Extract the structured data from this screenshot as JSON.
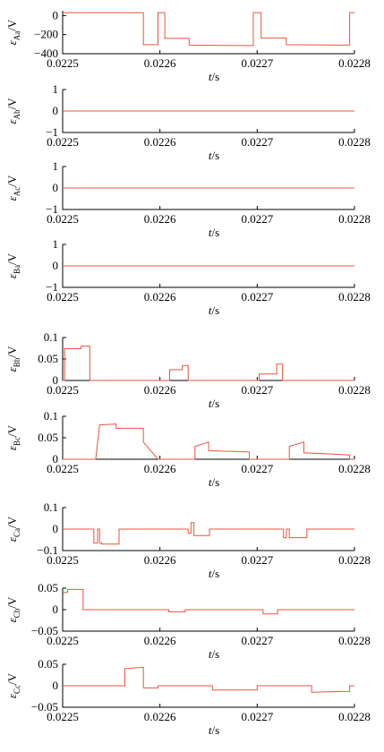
{
  "colors": {
    "series": "#e8543c",
    "axis": "#000000"
  },
  "chart_data": [
    {
      "type": "line",
      "ylabel_symbol": "ε",
      "ylabel_sub": "Aa",
      "ylabel_unit": "/V",
      "xlabel_symbol": "t",
      "xlabel_unit": "/s",
      "xlim": [
        0.0225,
        0.0228
      ],
      "ylim": [
        -400,
        50
      ],
      "xticks": [
        "0.0225",
        "0.0226",
        "0.0227",
        "0.0228"
      ],
      "yticks": [
        {
          "v": 0,
          "t": "0"
        },
        {
          "v": -200,
          "t": "−200"
        },
        {
          "v": -400,
          "t": "−400"
        }
      ],
      "x": [
        0.0225,
        0.022583,
        0.022583,
        0.022598,
        0.022598,
        0.022605,
        0.022605,
        0.02263,
        0.02263,
        0.022696,
        0.022696,
        0.022704,
        0.022704,
        0.02273,
        0.02273,
        0.022795,
        0.022795,
        0.0228
      ],
      "y": [
        30,
        30,
        -305,
        -305,
        30,
        30,
        -240,
        -240,
        -310,
        -315,
        30,
        30,
        -235,
        -235,
        -305,
        -310,
        30,
        30
      ]
    },
    {
      "type": "line",
      "ylabel_symbol": "ε",
      "ylabel_sub": "Ab",
      "ylabel_unit": "/V",
      "xlabel_symbol": "t",
      "xlabel_unit": "/s",
      "xlim": [
        0.0225,
        0.0228
      ],
      "ylim": [
        -1,
        1
      ],
      "xticks": [
        "0.0225",
        "0.0226",
        "0.0227",
        "0.0228"
      ],
      "yticks": [
        {
          "v": 1,
          "t": "1"
        },
        {
          "v": 0,
          "t": "0"
        },
        {
          "v": -1,
          "t": "−1"
        }
      ],
      "x": [
        0.0225,
        0.0228
      ],
      "y": [
        0,
        0
      ]
    },
    {
      "type": "line",
      "ylabel_symbol": "ε",
      "ylabel_sub": "Ac",
      "ylabel_unit": "/V",
      "xlabel_symbol": "t",
      "xlabel_unit": "/s",
      "xlim": [
        0.0225,
        0.0228
      ],
      "ylim": [
        -1,
        1
      ],
      "xticks": [
        "0.0225",
        "0.0226",
        "0.0227",
        "0.0228"
      ],
      "yticks": [
        {
          "v": 1,
          "t": "1"
        },
        {
          "v": 0,
          "t": "0"
        },
        {
          "v": -1,
          "t": "−1"
        }
      ],
      "x": [
        0.0225,
        0.0228
      ],
      "y": [
        0,
        0
      ]
    },
    {
      "type": "line",
      "ylabel_symbol": "ε",
      "ylabel_sub": "Ba",
      "ylabel_unit": "/V",
      "xlabel_symbol": "t",
      "xlabel_unit": "/s",
      "xlim": [
        0.0225,
        0.0228
      ],
      "ylim": [
        -1,
        1
      ],
      "xticks": [
        "0.0225",
        "0.0226",
        "0.0227",
        "0.0228"
      ],
      "yticks": [
        {
          "v": 1,
          "t": "1"
        },
        {
          "v": 0,
          "t": "0"
        },
        {
          "v": -1,
          "t": "−1"
        }
      ],
      "x": [
        0.0225,
        0.0228
      ],
      "y": [
        0,
        0
      ]
    },
    {
      "type": "line",
      "ylabel_symbol": "ε",
      "ylabel_sub": "Bb",
      "ylabel_unit": "/V",
      "xlabel_symbol": "t",
      "xlabel_unit": "/s",
      "xlim": [
        0.0225,
        0.0228
      ],
      "ylim": [
        0,
        0.1
      ],
      "xticks": [
        "0.0225",
        "0.0226",
        "0.0227",
        "0.0228"
      ],
      "yticks": [
        {
          "v": 0.1,
          "t": "0.1"
        },
        {
          "v": 0.05,
          "t": "0.05"
        },
        {
          "v": 0,
          "t": "0"
        }
      ],
      "x": [
        0.0225,
        0.022502,
        0.022502,
        0.022519,
        0.022519,
        0.022528,
        0.022528,
        0.02261,
        0.02261,
        0.022623,
        0.022623,
        0.022629,
        0.022629,
        0.022702,
        0.022702,
        0.02272,
        0.02272,
        0.022726,
        0.022726,
        0.0228
      ],
      "y": [
        0,
        0,
        0.074,
        0.074,
        0.08,
        0.08,
        0,
        0,
        0.025,
        0.025,
        0.035,
        0.035,
        0,
        0,
        0.015,
        0.015,
        0.038,
        0.038,
        0,
        0
      ]
    },
    {
      "type": "line",
      "ylabel_symbol": "ε",
      "ylabel_sub": "Bc",
      "ylabel_unit": "/V",
      "xlabel_symbol": "t",
      "xlabel_unit": "/s",
      "xlim": [
        0.0225,
        0.0228
      ],
      "ylim": [
        0,
        0.1
      ],
      "xticks": [
        "0.0225",
        "0.0226",
        "0.0227",
        "0.0228"
      ],
      "yticks": [
        {
          "v": 0.1,
          "t": "0.1"
        },
        {
          "v": 0.05,
          "t": "0.05"
        },
        {
          "v": 0,
          "t": "0"
        }
      ],
      "x": [
        0.0225,
        0.022534,
        0.022538,
        0.022555,
        0.022555,
        0.022583,
        0.022583,
        0.022598,
        0.022636,
        0.022636,
        0.02265,
        0.02265,
        0.022692,
        0.022692,
        0.022733,
        0.022733,
        0.022748,
        0.022748,
        0.022795,
        0.022795,
        0.0228
      ],
      "y": [
        0,
        0,
        0.08,
        0.082,
        0.072,
        0.072,
        0.04,
        0,
        0,
        0.03,
        0.04,
        0.02,
        0.017,
        0,
        0,
        0.03,
        0.04,
        0.015,
        0.01,
        0,
        0
      ]
    },
    {
      "type": "line",
      "ylabel_symbol": "ε",
      "ylabel_sub": "Ca",
      "ylabel_unit": "/V",
      "xlabel_symbol": "t",
      "xlabel_unit": "/s",
      "xlim": [
        0.0225,
        0.0228
      ],
      "ylim": [
        -0.1,
        0.1
      ],
      "xticks": [
        "0.0225",
        "0.0226",
        "0.0227",
        "0.0228"
      ],
      "yticks": [
        {
          "v": 0.1,
          "t": "0.1"
        },
        {
          "v": 0,
          "t": "0"
        },
        {
          "v": -0.1,
          "t": "−0.1"
        }
      ],
      "x": [
        0.0225,
        0.022532,
        0.022532,
        0.022536,
        0.022536,
        0.022538,
        0.022538,
        0.02254,
        0.02254,
        0.022558,
        0.022558,
        0.022629,
        0.022629,
        0.022632,
        0.022632,
        0.022635,
        0.022635,
        0.022651,
        0.022651,
        0.022727,
        0.022727,
        0.02273,
        0.02273,
        0.022733,
        0.022733,
        0.022751,
        0.022751,
        0.0228
      ],
      "y": [
        0,
        0,
        -0.065,
        -0.065,
        0,
        0,
        -0.065,
        -0.065,
        -0.07,
        -0.07,
        0,
        0,
        -0.02,
        -0.02,
        0.03,
        0.03,
        -0.03,
        -0.03,
        0,
        0,
        -0.04,
        -0.04,
        0,
        0,
        -0.04,
        -0.04,
        0,
        0
      ]
    },
    {
      "type": "line",
      "ylabel_symbol": "ε",
      "ylabel_sub": "Cb",
      "ylabel_unit": "/V",
      "xlabel_symbol": "t",
      "xlabel_unit": "/s",
      "xlim": [
        0.0225,
        0.0228
      ],
      "ylim": [
        -0.05,
        0.05
      ],
      "xticks": [
        "0.0225",
        "0.0226",
        "0.0227",
        "0.0228"
      ],
      "yticks": [
        {
          "v": 0.05,
          "t": "0.05"
        },
        {
          "v": 0,
          "t": "0"
        },
        {
          "v": -0.05,
          "t": "−0.05"
        }
      ],
      "x": [
        0.0225,
        0.022505,
        0.022505,
        0.022521,
        0.022521,
        0.022609,
        0.022609,
        0.022626,
        0.022626,
        0.022706,
        0.022706,
        0.022721,
        0.022721,
        0.0228
      ],
      "y": [
        0.04,
        0.04,
        0.047,
        0.047,
        0,
        0,
        -0.005,
        -0.005,
        0,
        0,
        -0.01,
        -0.01,
        0,
        0
      ]
    },
    {
      "type": "line",
      "ylabel_symbol": "ε",
      "ylabel_sub": "Cc",
      "ylabel_unit": "/V",
      "xlabel_symbol": "t",
      "xlabel_unit": "/s",
      "xlim": [
        0.0225,
        0.0228
      ],
      "ylim": [
        -0.05,
        0.05
      ],
      "xticks": [
        "0.0225",
        "0.0226",
        "0.0227",
        "0.0228"
      ],
      "yticks": [
        {
          "v": 0.05,
          "t": "0.05"
        },
        {
          "v": 0,
          "t": "0"
        },
        {
          "v": -0.05,
          "t": "−0.05"
        }
      ],
      "x": [
        0.0225,
        0.022564,
        0.022564,
        0.022583,
        0.022583,
        0.022598,
        0.022598,
        0.022654,
        0.022654,
        0.0227,
        0.0227,
        0.022756,
        0.022756,
        0.022795,
        0.022795,
        0.0228
      ],
      "y": [
        0,
        0,
        0.04,
        0.043,
        -0.005,
        -0.005,
        0,
        0,
        -0.01,
        -0.01,
        0,
        0,
        -0.015,
        -0.013,
        0,
        0
      ]
    }
  ]
}
